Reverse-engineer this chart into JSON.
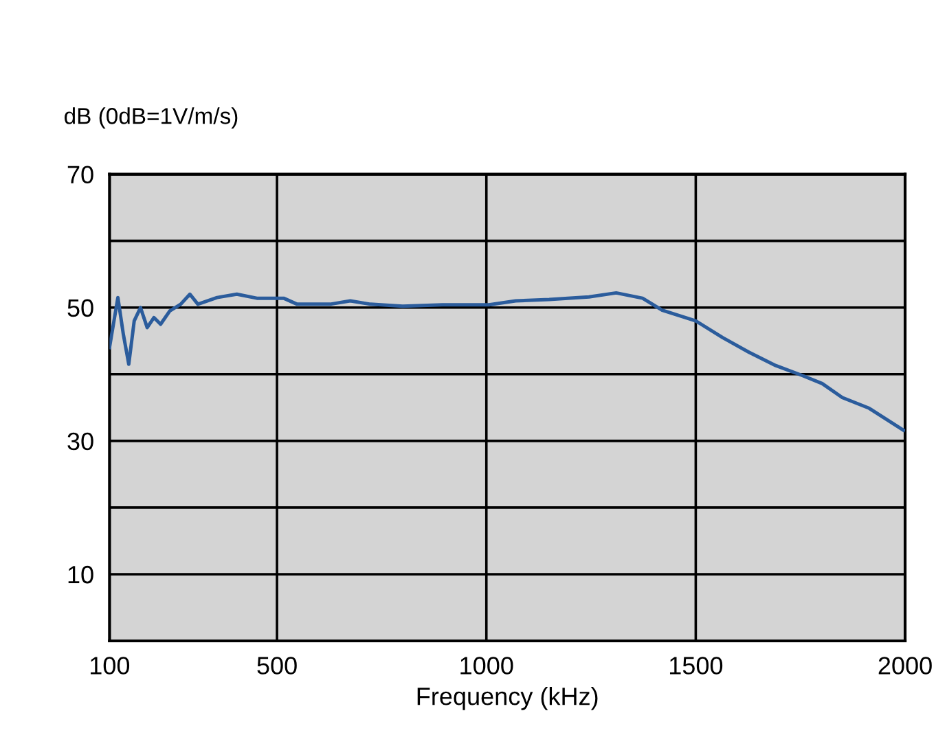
{
  "chart_data": {
    "type": "line",
    "xlabel": "Frequency (kHz)",
    "ylabel": "dB (0dB=1V/m/s)",
    "x": [
      100,
      120,
      133,
      146,
      159,
      174,
      190,
      206,
      222,
      244,
      270,
      292,
      311,
      357,
      404,
      452,
      516,
      548,
      627,
      675,
      723,
      800,
      895,
      1006,
      1070,
      1150,
      1245,
      1310,
      1373,
      1420,
      1500,
      1564,
      1627,
      1691,
      1755,
      1802,
      1850,
      1914,
      1996
    ],
    "series": [
      {
        "color": "#2b5c9c",
        "values": [
          44,
          51.5,
          46,
          41.5,
          48,
          50,
          47,
          48.5,
          47.5,
          49.5,
          50.5,
          52,
          50.5,
          51.5,
          52,
          51.4,
          51.4,
          50.5,
          50.5,
          51,
          50.5,
          50.2,
          50.4,
          50.4,
          51,
          51.2,
          51.6,
          52.2,
          51.4,
          49.6,
          48,
          45.5,
          43.3,
          41.3,
          39.8,
          38.6,
          36.5,
          34.9,
          31.6
        ]
      }
    ],
    "xlim": [
      100,
      2000
    ],
    "xticks": [
      100,
      500,
      1000,
      1500,
      2000
    ],
    "ylim": [
      0,
      70
    ],
    "yticks": [
      {
        "value": 10,
        "label": "10"
      },
      {
        "value": 20,
        "label": null
      },
      {
        "value": 30,
        "label": "30"
      },
      {
        "value": 40,
        "label": null
      },
      {
        "value": 50,
        "label": "50"
      },
      {
        "value": 60,
        "label": null
      },
      {
        "value": 70,
        "label": "70"
      }
    ],
    "grid": true,
    "marker": "none",
    "line_style": "solid"
  }
}
